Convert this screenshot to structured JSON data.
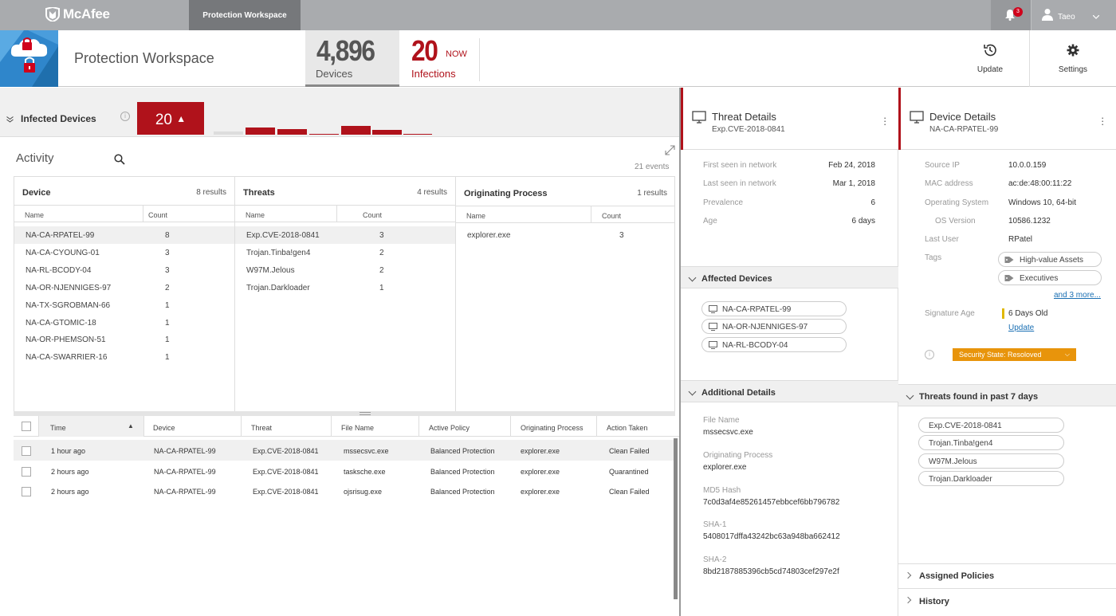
{
  "topbar": {
    "brand": "McAfee",
    "active_tab": "Protection Workspace",
    "notification_count": "3",
    "user_name": "Taeo"
  },
  "header": {
    "title": "Protection Workspace",
    "devices_count": "4,896",
    "devices_label": "Devices",
    "infections_count": "20",
    "infections_now": "NOW",
    "infections_label": "Infections",
    "update_label": "Update",
    "settings_label": "Settings"
  },
  "infected": {
    "title": "Infected Devices",
    "count": "20",
    "spark_levels": [
      0.2,
      0.45,
      0.35,
      0,
      0.55,
      0.28,
      0.05
    ]
  },
  "activity": {
    "title": "Activity",
    "events": "21 events",
    "device": {
      "title": "Device",
      "results": "8 results",
      "col_name": "Name",
      "col_count": "Count",
      "rows": [
        {
          "name": "NA-CA-RPATEL-99",
          "count": "8"
        },
        {
          "name": "NA-CA-CYOUNG-01",
          "count": "3"
        },
        {
          "name": "NA-RL-BCODY-04",
          "count": "3"
        },
        {
          "name": "NA-OR-NJENNIGES-97",
          "count": "2"
        },
        {
          "name": "NA-TX-SGROBMAN-66",
          "count": "1"
        },
        {
          "name": "NA-CA-GTOMIC-18",
          "count": "1"
        },
        {
          "name": "NA-OR-PHEMSON-51",
          "count": "1"
        },
        {
          "name": "NA-CA-SWARRIER-16",
          "count": "1"
        }
      ]
    },
    "threats": {
      "title": "Threats",
      "results": "4 results",
      "col_name": "Name",
      "col_count": "Count",
      "rows": [
        {
          "name": "Exp.CVE-2018-0841",
          "count": "3"
        },
        {
          "name": "Trojan.Tinba!gen4",
          "count": "2"
        },
        {
          "name": "W97M.Jelous",
          "count": "2"
        },
        {
          "name": "Trojan.Darkloader",
          "count": "1"
        }
      ]
    },
    "process": {
      "title": "Originating Process",
      "results": "1 results",
      "col_name": "Name",
      "col_count": "Count",
      "rows": [
        {
          "name": "explorer.exe",
          "count": "3"
        }
      ]
    }
  },
  "events_table": {
    "headers": [
      "Time",
      "Device",
      "Threat",
      "File Name",
      "Active Policy",
      "Originating Process",
      "Action Taken"
    ],
    "rows": [
      [
        "1 hour ago",
        "NA-CA-RPATEL-99",
        "Exp.CVE-2018-0841",
        "mssecsvc.exe",
        "Balanced Protection",
        "explorer.exe",
        "Clean Failed"
      ],
      [
        "2 hours ago",
        "NA-CA-RPATEL-99",
        "Exp.CVE-2018-0841",
        "tasksche.exe",
        "Balanced Protection",
        "explorer.exe",
        "Quarantined"
      ],
      [
        "2 hours ago",
        "NA-CA-RPATEL-99",
        "Exp.CVE-2018-0841",
        "ojsrisug.exe",
        "Balanced Protection",
        "explorer.exe",
        "Clean Failed"
      ]
    ]
  },
  "threat_details": {
    "title": "Threat Details",
    "subtitle": "Exp.CVE-2018-0841",
    "fields": [
      {
        "label": "First seen in network",
        "value": "Feb 24, 2018"
      },
      {
        "label": "Last seen in network",
        "value": "Mar 1, 2018"
      },
      {
        "label": "Prevalence",
        "value": "6"
      },
      {
        "label": "Age",
        "value": "6 days"
      }
    ],
    "affected_title": "Affected Devices",
    "affected": [
      "NA-CA-RPATEL-99",
      "NA-OR-NJENNIGES-97",
      "NA-RL-BCODY-04"
    ],
    "additional_title": "Additional Details",
    "additional": [
      {
        "label": "File Name",
        "value": "mssecsvc.exe"
      },
      {
        "label": "Originating Process",
        "value": "explorer.exe"
      },
      {
        "label": "MD5 Hash",
        "value": "7c0d3af4e85261457ebbcef6bb796782"
      },
      {
        "label": "SHA-1",
        "value": "5408017dffa43242bc63a948ba662412"
      },
      {
        "label": "SHA-2",
        "value": "8bd2187885396cb5cd74803cef297e2f"
      }
    ]
  },
  "device_details": {
    "title": "Device Details",
    "subtitle": "NA-CA-RPATEL-99",
    "source_ip_label": "Source IP",
    "source_ip": "10.0.0.159",
    "mac_label": "MAC address",
    "mac": "ac:de:48:00:11:22",
    "os_label": "Operating System",
    "os": "Windows 10, 64-bit",
    "osver_label": "OS Version",
    "osver": "10586.1232",
    "user_label": "Last User",
    "user": "RPatel",
    "tags_label": "Tags",
    "tags": [
      "High-value Assets",
      "Executives"
    ],
    "more_tags": "and 3 more...",
    "sig_label": "Signature Age",
    "sig_value": "6 Days Old",
    "sig_update": "Update",
    "sec_state": "Security State: Resoloved",
    "threats_title": "Threats found in past 7 days",
    "threats": [
      "Exp.CVE-2018-0841",
      "Trojan.Tinba!gen4",
      "W97M.Jelous",
      "Trojan.Darkloader"
    ],
    "assigned_policies": "Assigned Policies",
    "history": "History"
  }
}
